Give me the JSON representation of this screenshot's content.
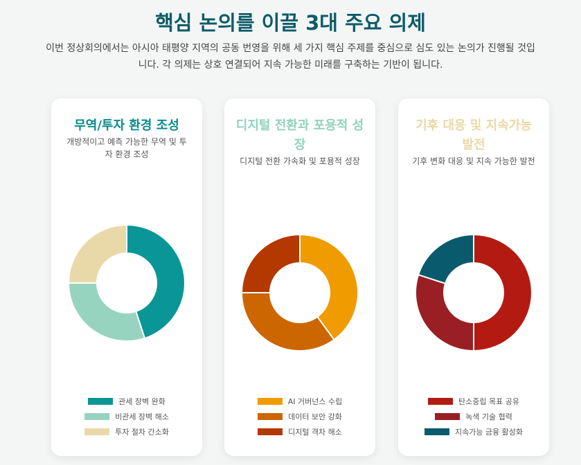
{
  "page": {
    "title": "핵심 논의를 이끌 3대 주요 의제",
    "intro": "이번 정상회의에서는 아시아 태평양 지역의 공동 번영을 위해 세 가지 핵심 주제를 중심으로 심도 있는 논의가 진행될 것입니다. 각 의제는 상호 연결되어 지속 가능한 미래를 구축하는 기반이 됩니다."
  },
  "cards": [
    {
      "title": "무역/투자 환경 조성",
      "title_color": "#0a8a8a",
      "desc": "개방적이고 예측 가능한 무역 및 투자 환경 조성"
    },
    {
      "title": "디지털 전환과 포용적 성장",
      "title_color": "#8fd3bd",
      "desc": "디지털 전환 가속화 및 포용적 성장"
    },
    {
      "title": "기후 대응 및 지속가능 발전",
      "title_color": "#ead8a4",
      "desc": "기후 변화 대응 및 지속 가능한 발전"
    }
  ],
  "chart_data": [
    {
      "type": "pie",
      "title": "무역/투자 환경 조성",
      "categories": [
        "관세 장벽 완화",
        "비관세 장벽 해소",
        "투자 절차 간소화"
      ],
      "values": [
        45,
        30,
        25
      ],
      "colors": [
        "#0a9696",
        "#97d4c0",
        "#ead9a8"
      ],
      "legend": "bottom"
    },
    {
      "type": "pie",
      "title": "디지털 전환과 포용적 성장",
      "categories": [
        "AI 거버넌스 수립",
        "데이터 보안 강화",
        "디지털 격차 해소"
      ],
      "values": [
        40,
        35,
        25
      ],
      "colors": [
        "#f09b00",
        "#cc6600",
        "#b33900"
      ],
      "legend": "bottom"
    },
    {
      "type": "pie",
      "title": "기후 대응 및 지속가능 발전",
      "categories": [
        "탄소중립 목표 공유",
        "녹색 기술 협력",
        "지속가능 금융 활성화"
      ],
      "values": [
        50,
        30,
        20
      ],
      "colors": [
        "#b31a12",
        "#9a1f24",
        "#0a5a6e"
      ],
      "legend": "bottom"
    }
  ]
}
